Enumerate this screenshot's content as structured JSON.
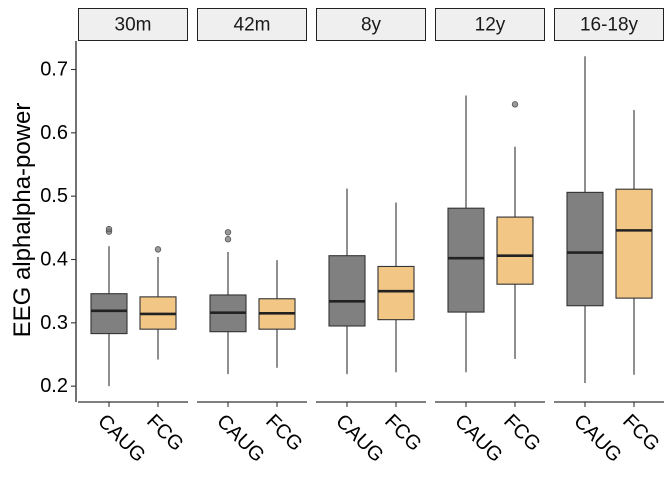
{
  "chart_data": {
    "type": "boxplot",
    "title": "",
    "xlabel": "",
    "ylabel": "EEG alphalpha-power",
    "ylim": [
      0.175,
      0.745
    ],
    "yticks": [
      0.2,
      0.3,
      0.4,
      0.5,
      0.6,
      0.7
    ],
    "ytick_labels": [
      "0.2",
      "0.3",
      "0.4",
      "0.5",
      "0.6",
      "0.7"
    ],
    "grid": false,
    "legend": "none",
    "groups": [
      "CAUG",
      "FCG"
    ],
    "colors": {
      "CAUG": "#808080",
      "FCG": "#f2c685"
    },
    "panels": [
      {
        "label": "30m",
        "boxes": [
          {
            "group": "CAUG",
            "low": 0.2,
            "q1": 0.283,
            "median": 0.319,
            "q3": 0.346,
            "high": 0.421,
            "outliers": [
              0.444,
              0.448
            ]
          },
          {
            "group": "FCG",
            "low": 0.242,
            "q1": 0.29,
            "median": 0.314,
            "q3": 0.341,
            "high": 0.404,
            "outliers": [
              0.416
            ]
          }
        ]
      },
      {
        "label": "42m",
        "boxes": [
          {
            "group": "CAUG",
            "low": 0.219,
            "q1": 0.286,
            "median": 0.316,
            "q3": 0.344,
            "high": 0.412,
            "outliers": [
              0.432,
              0.443
            ]
          },
          {
            "group": "FCG",
            "low": 0.229,
            "q1": 0.29,
            "median": 0.315,
            "q3": 0.338,
            "high": 0.399,
            "outliers": []
          }
        ]
      },
      {
        "label": "8y",
        "boxes": [
          {
            "group": "CAUG",
            "low": 0.219,
            "q1": 0.295,
            "median": 0.334,
            "q3": 0.406,
            "high": 0.512,
            "outliers": []
          },
          {
            "group": "FCG",
            "low": 0.222,
            "q1": 0.305,
            "median": 0.35,
            "q3": 0.389,
            "high": 0.49,
            "outliers": []
          }
        ]
      },
      {
        "label": "12y",
        "boxes": [
          {
            "group": "CAUG",
            "low": 0.222,
            "q1": 0.317,
            "median": 0.402,
            "q3": 0.481,
            "high": 0.659,
            "outliers": []
          },
          {
            "group": "FCG",
            "low": 0.243,
            "q1": 0.361,
            "median": 0.406,
            "q3": 0.467,
            "high": 0.578,
            "outliers": [
              0.645
            ]
          }
        ]
      },
      {
        "label": "16-18y",
        "boxes": [
          {
            "group": "CAUG",
            "low": 0.205,
            "q1": 0.327,
            "median": 0.411,
            "q3": 0.506,
            "high": 0.721,
            "outliers": []
          },
          {
            "group": "FCG",
            "low": 0.218,
            "q1": 0.339,
            "median": 0.446,
            "q3": 0.511,
            "high": 0.636,
            "outliers": []
          }
        ]
      }
    ]
  }
}
